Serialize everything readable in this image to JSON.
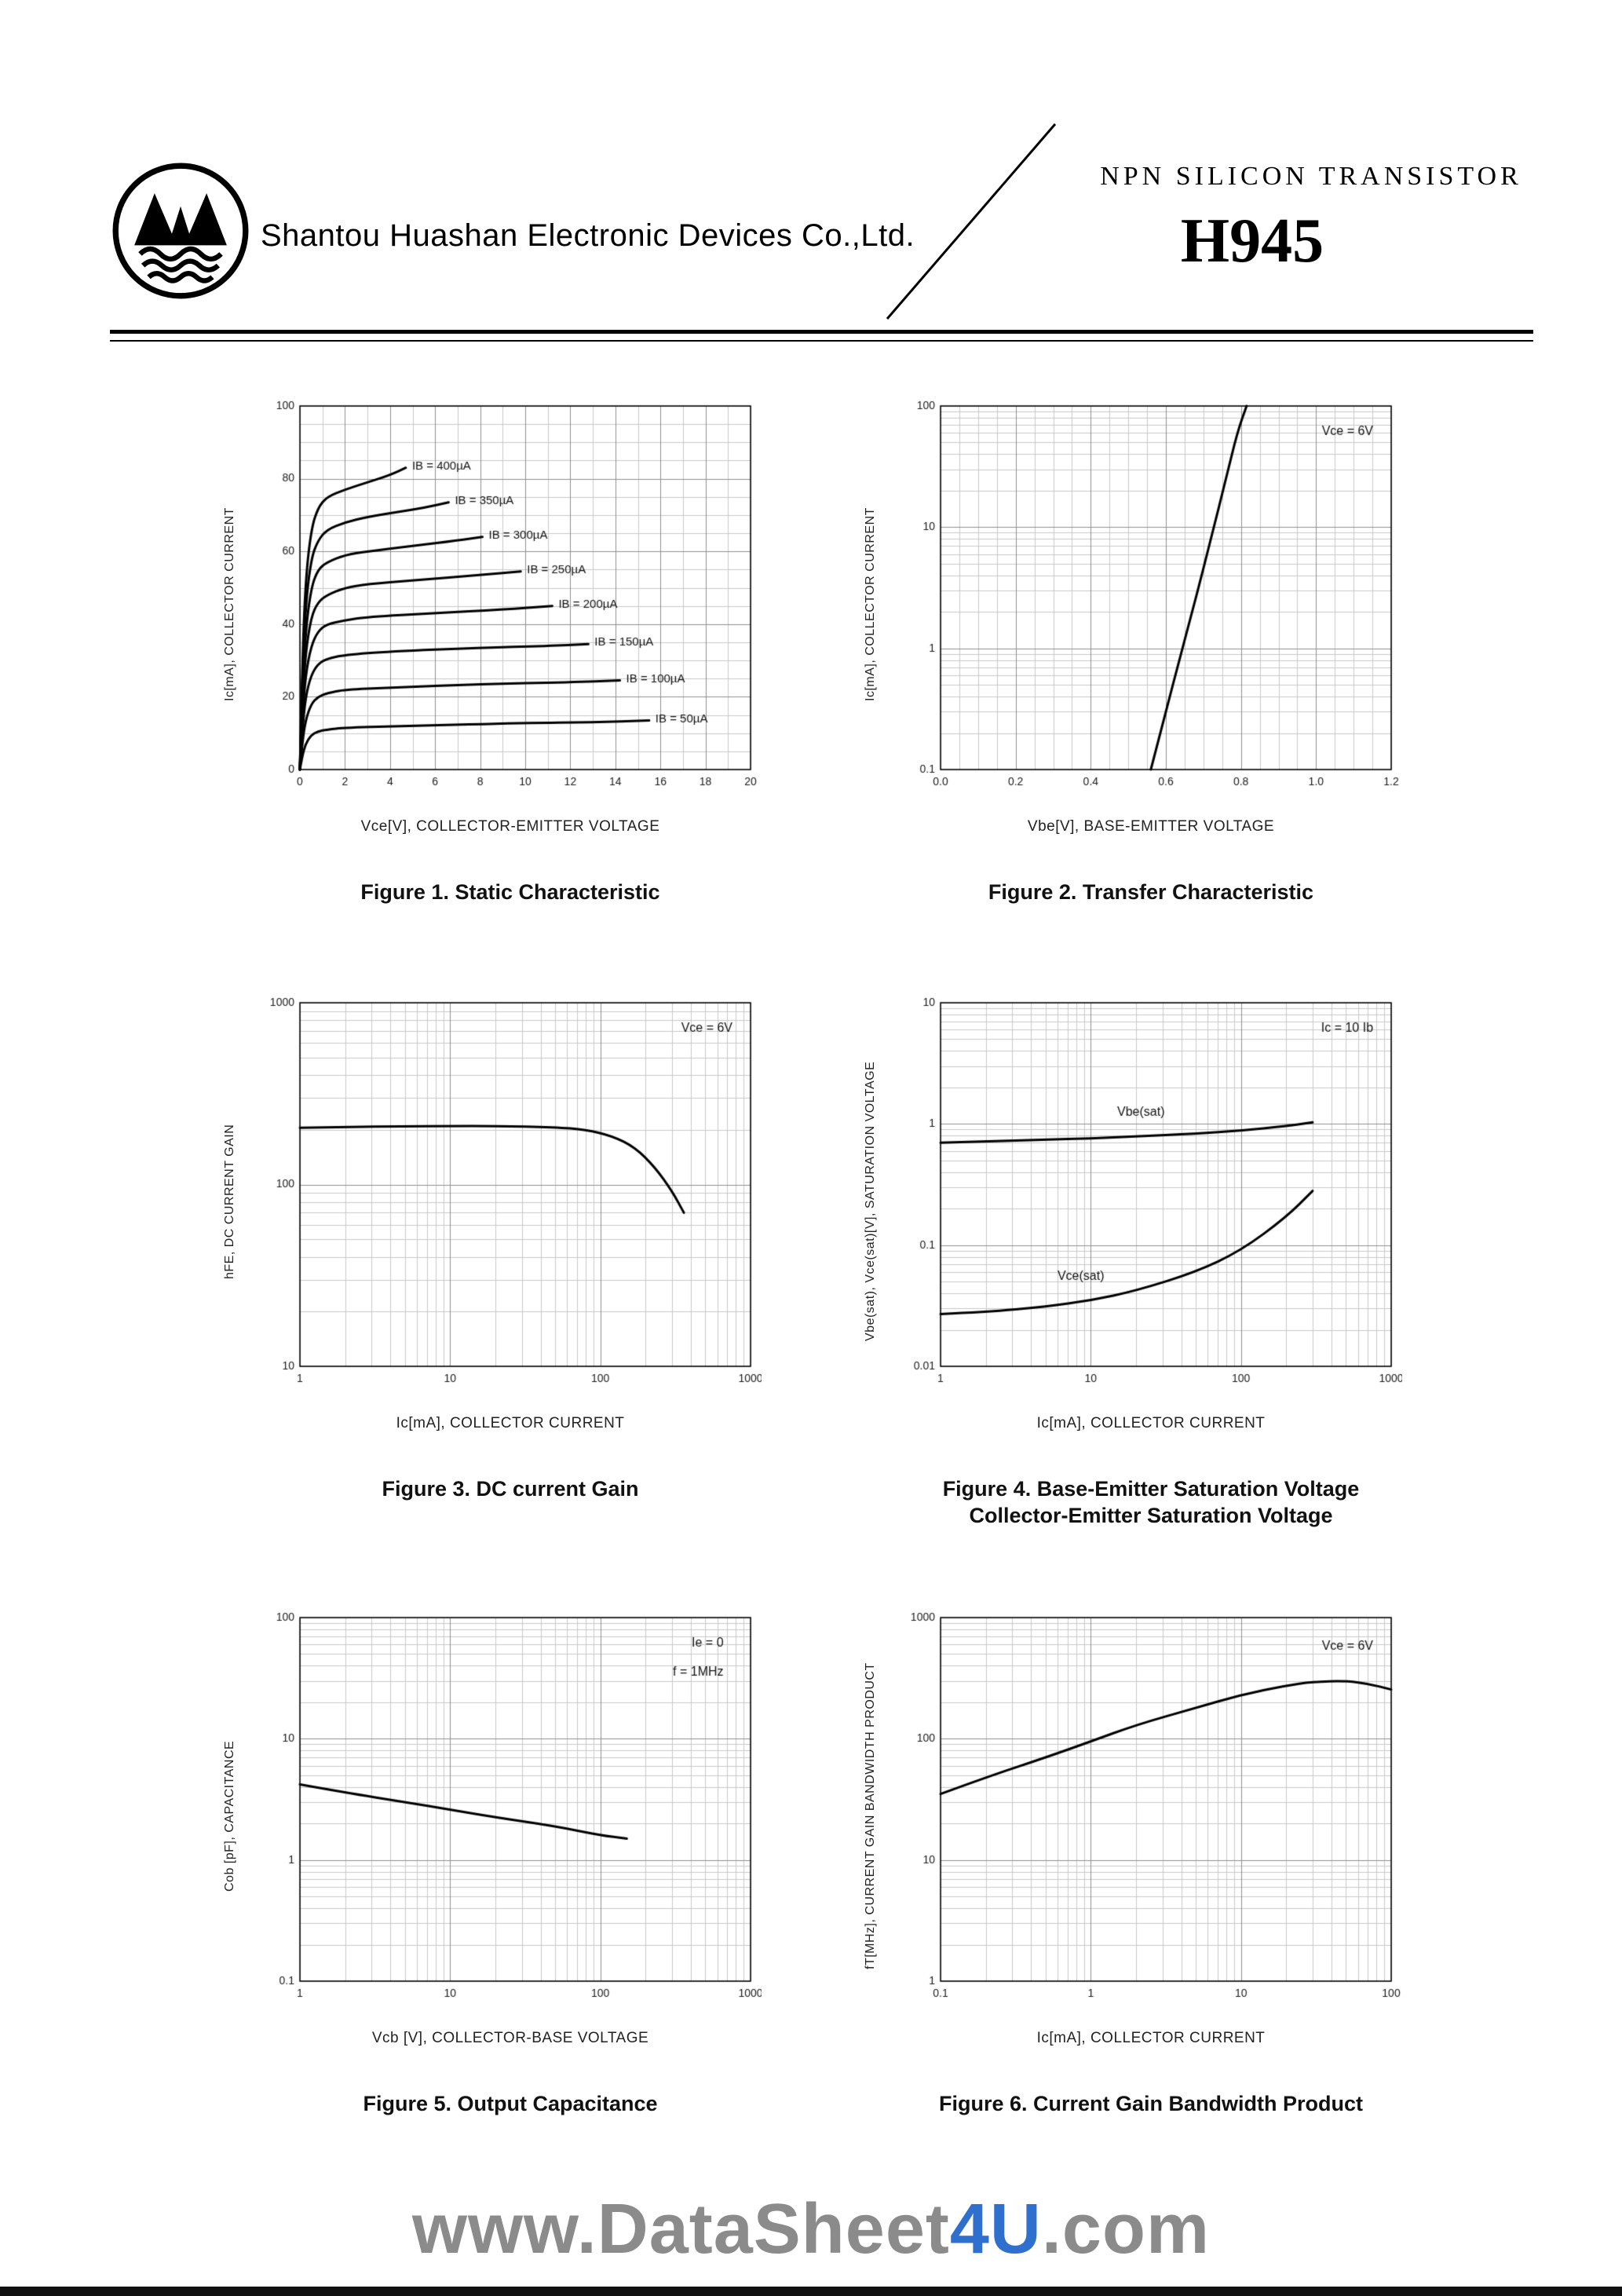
{
  "header": {
    "company": "Shantou Huashan Electronic Devices Co.,Ltd.",
    "device_type": "NPN  SILICON  TRANSISTOR",
    "part_number": "H945"
  },
  "watermark": {
    "prefix": "www.DataSheet",
    "highlight": "4U",
    "suffix": ".com"
  },
  "colors": {
    "curve": "#000000",
    "grid_minor": "#c9c9c9",
    "grid_major": "#8f8f8f",
    "watermark_gray": "#8b8b8b",
    "watermark_blue": "#2f6fce"
  },
  "chart_data": [
    {
      "type": "line",
      "caption": "Figure 1. Static Characteristic",
      "xlabel": "Vce[V], COLLECTOR-EMITTER VOLTAGE",
      "ylabel": "Ic[mA], COLLECTOR CURRENT",
      "x": {
        "scale": "linear",
        "min": 0,
        "max": 20,
        "minor_step": 1,
        "tick_values": [
          0,
          2,
          4,
          6,
          8,
          10,
          12,
          14,
          16,
          18,
          20
        ],
        "tick_labels": [
          "0",
          "2",
          "4",
          "6",
          "8",
          "10",
          "12",
          "14",
          "16",
          "18",
          "20"
        ]
      },
      "y": {
        "scale": "linear",
        "min": 0,
        "max": 100,
        "minor_step": 5,
        "tick_values": [
          0,
          20,
          40,
          60,
          80,
          100
        ],
        "tick_labels": [
          "0",
          "20",
          "40",
          "60",
          "80",
          "100"
        ]
      },
      "series": [
        {
          "name": "IB = 400µA",
          "end_label": true,
          "points": [
            [
              0,
              0
            ],
            [
              0.1,
              28
            ],
            [
              0.25,
              52
            ],
            [
              0.5,
              66
            ],
            [
              0.8,
              72
            ],
            [
              1.2,
              75
            ],
            [
              2,
              77
            ],
            [
              3,
              79
            ],
            [
              4,
              81
            ],
            [
              4.7,
              83
            ]
          ]
        },
        {
          "name": "IB = 350µA",
          "end_label": true,
          "points": [
            [
              0,
              0
            ],
            [
              0.1,
              24
            ],
            [
              0.25,
              45
            ],
            [
              0.5,
              58
            ],
            [
              0.8,
              63
            ],
            [
              1.2,
              66
            ],
            [
              2,
              68
            ],
            [
              3,
              69.5
            ],
            [
              4.5,
              71
            ],
            [
              5.5,
              72
            ],
            [
              6.6,
              73.5
            ]
          ]
        },
        {
          "name": "IB = 300µA",
          "end_label": true,
          "points": [
            [
              0,
              0
            ],
            [
              0.1,
              20
            ],
            [
              0.25,
              38
            ],
            [
              0.5,
              50
            ],
            [
              0.8,
              55
            ],
            [
              1.2,
              57
            ],
            [
              2,
              59
            ],
            [
              3,
              60
            ],
            [
              5,
              61.5
            ],
            [
              7,
              63
            ],
            [
              8.1,
              64
            ]
          ]
        },
        {
          "name": "IB = 250µA",
          "end_label": true,
          "points": [
            [
              0,
              0
            ],
            [
              0.1,
              17
            ],
            [
              0.25,
              32
            ],
            [
              0.5,
              42
            ],
            [
              0.8,
              46
            ],
            [
              1.2,
              48
            ],
            [
              2,
              50
            ],
            [
              3,
              51
            ],
            [
              5,
              52
            ],
            [
              8,
              53.5
            ],
            [
              9.8,
              54.5
            ]
          ]
        },
        {
          "name": "IB = 200µA",
          "end_label": true,
          "points": [
            [
              0,
              0
            ],
            [
              0.1,
              13
            ],
            [
              0.25,
              26
            ],
            [
              0.5,
              34
            ],
            [
              0.8,
              38
            ],
            [
              1.2,
              40
            ],
            [
              2,
              41
            ],
            [
              3,
              42
            ],
            [
              6,
              43
            ],
            [
              9,
              44
            ],
            [
              11.2,
              45
            ]
          ]
        },
        {
          "name": "IB = 150µA",
          "end_label": true,
          "points": [
            [
              0,
              0
            ],
            [
              0.1,
              10
            ],
            [
              0.25,
              20
            ],
            [
              0.5,
              26
            ],
            [
              0.8,
              29
            ],
            [
              1.2,
              30.5
            ],
            [
              2,
              31.5
            ],
            [
              4,
              32.5
            ],
            [
              8,
              33.5
            ],
            [
              11,
              34
            ],
            [
              12.8,
              34.5
            ]
          ]
        },
        {
          "name": "IB = 100µA",
          "end_label": true,
          "points": [
            [
              0,
              0
            ],
            [
              0.1,
              7
            ],
            [
              0.25,
              13.5
            ],
            [
              0.5,
              18
            ],
            [
              0.8,
              20
            ],
            [
              1.2,
              21
            ],
            [
              2,
              22
            ],
            [
              4,
              22.5
            ],
            [
              8,
              23.5
            ],
            [
              12,
              24
            ],
            [
              14.2,
              24.5
            ]
          ]
        },
        {
          "name": "IB = 50µA",
          "end_label": true,
          "points": [
            [
              0,
              0
            ],
            [
              0.1,
              3.5
            ],
            [
              0.25,
              7
            ],
            [
              0.5,
              9.5
            ],
            [
              0.8,
              10.5
            ],
            [
              1.2,
              11
            ],
            [
              2,
              11.5
            ],
            [
              5,
              12
            ],
            [
              10,
              12.8
            ],
            [
              13,
              13
            ],
            [
              15.5,
              13.5
            ]
          ]
        }
      ],
      "annotations": []
    },
    {
      "type": "line",
      "caption": "Figure 2. Transfer Characteristic",
      "xlabel": "Vbe[V], BASE-EMITTER VOLTAGE",
      "ylabel": "Ic[mA], COLLECTOR CURRENT",
      "x": {
        "scale": "linear",
        "min": 0,
        "max": 1.2,
        "minor_step": 0.05,
        "tick_values": [
          0,
          0.2,
          0.4,
          0.6,
          0.8,
          1.0,
          1.2
        ],
        "tick_labels": [
          "0.0",
          "0.2",
          "0.4",
          "0.6",
          "0.8",
          "1.0",
          "1.2"
        ]
      },
      "y": {
        "scale": "log",
        "min": 0.1,
        "max": 100,
        "tick_values": [
          0.1,
          1,
          10,
          100
        ],
        "tick_labels": [
          "0.1",
          "1",
          "10",
          "100"
        ]
      },
      "series": [
        {
          "name": "Ic",
          "points": [
            [
              0.56,
              0.1
            ],
            [
              0.6,
              0.3
            ],
            [
              0.64,
              0.9
            ],
            [
              0.68,
              2.6
            ],
            [
              0.72,
              8
            ],
            [
              0.76,
              25
            ],
            [
              0.79,
              60
            ],
            [
              0.815,
              100
            ]
          ]
        }
      ],
      "annotations": [
        {
          "text": "Vce = 6V",
          "rx": 0.96,
          "ry": 0.07,
          "align": "right"
        }
      ]
    },
    {
      "type": "line",
      "caption": "Figure 3. DC current Gain",
      "xlabel": "Ic[mA], COLLECTOR CURRENT",
      "ylabel": "hFE, DC CURRENT GAIN",
      "x": {
        "scale": "log",
        "min": 1,
        "max": 1000,
        "tick_values": [
          1,
          10,
          100,
          1000
        ],
        "tick_labels": [
          "1",
          "10",
          "100",
          "1000"
        ]
      },
      "y": {
        "scale": "log",
        "min": 10,
        "max": 1000,
        "tick_values": [
          10,
          100,
          1000
        ],
        "tick_labels": [
          "10",
          "100",
          "1000"
        ]
      },
      "series": [
        {
          "name": "hFE",
          "points": [
            [
              1,
              205
            ],
            [
              2,
              207
            ],
            [
              5,
              209
            ],
            [
              10,
              210
            ],
            [
              20,
              210
            ],
            [
              50,
              207
            ],
            [
              80,
              200
            ],
            [
              120,
              185
            ],
            [
              170,
              160
            ],
            [
              230,
              125
            ],
            [
              300,
              92
            ],
            [
              360,
              70
            ]
          ]
        }
      ],
      "annotations": [
        {
          "text": "Vce = 6V",
          "rx": 0.96,
          "ry": 0.07,
          "align": "right"
        }
      ]
    },
    {
      "type": "line",
      "caption": "Figure 4. Base-Emitter Saturation Voltage",
      "caption2": "Collector-Emitter Saturation Voltage",
      "xlabel": "Ic[mA], COLLECTOR CURRENT",
      "ylabel": "Vbe(sat), Vce(sat)[V], SATURATION VOLTAGE",
      "x": {
        "scale": "log",
        "min": 1,
        "max": 1000,
        "tick_values": [
          1,
          10,
          100,
          1000
        ],
        "tick_labels": [
          "1",
          "10",
          "100",
          "1000"
        ]
      },
      "y": {
        "scale": "log",
        "min": 0.01,
        "max": 10,
        "tick_values": [
          0.01,
          0.1,
          1,
          10
        ],
        "tick_labels": [
          "0.01",
          "0.1",
          "1",
          "10"
        ]
      },
      "series": [
        {
          "name": "Vbe(sat)",
          "points": [
            [
              1,
              0.7
            ],
            [
              2,
              0.72
            ],
            [
              5,
              0.74
            ],
            [
              10,
              0.76
            ],
            [
              20,
              0.79
            ],
            [
              50,
              0.83
            ],
            [
              100,
              0.88
            ],
            [
              200,
              0.96
            ],
            [
              300,
              1.03
            ]
          ]
        },
        {
          "name": "Vce(sat)",
          "points": [
            [
              1,
              0.027
            ],
            [
              2,
              0.028
            ],
            [
              5,
              0.031
            ],
            [
              10,
              0.035
            ],
            [
              20,
              0.042
            ],
            [
              50,
              0.06
            ],
            [
              100,
              0.09
            ],
            [
              200,
              0.17
            ],
            [
              300,
              0.28
            ]
          ]
        }
      ],
      "annotations": [
        {
          "text": "Ic = 10 Ib",
          "rx": 0.96,
          "ry": 0.07,
          "align": "right"
        },
        {
          "text": "Vbe(sat)",
          "x": 15,
          "y": 1.25,
          "align": "left"
        },
        {
          "text": "Vce(sat)",
          "x": 6,
          "y": 0.055,
          "align": "left"
        }
      ]
    },
    {
      "type": "line",
      "caption": "Figure 5. Output Capacitance",
      "xlabel": "Vcb [V], COLLECTOR-BASE VOLTAGE",
      "ylabel": "Cob [pF], CAPACITANCE",
      "x": {
        "scale": "log",
        "min": 1,
        "max": 1000,
        "tick_values": [
          1,
          10,
          100,
          1000
        ],
        "tick_labels": [
          "1",
          "10",
          "100",
          "1000"
        ]
      },
      "y": {
        "scale": "log",
        "min": 0.1,
        "max": 100,
        "tick_values": [
          0.1,
          1,
          10,
          100
        ],
        "tick_labels": [
          "0.1",
          "1",
          "10",
          "100"
        ]
      },
      "series": [
        {
          "name": "Cob",
          "points": [
            [
              1,
              4.2
            ],
            [
              2,
              3.6
            ],
            [
              5,
              3.0
            ],
            [
              10,
              2.6
            ],
            [
              20,
              2.25
            ],
            [
              50,
              1.9
            ],
            [
              100,
              1.6
            ],
            [
              150,
              1.5
            ]
          ]
        }
      ],
      "annotations": [
        {
          "text": "Ie = 0",
          "rx": 0.94,
          "ry": 0.07,
          "align": "right"
        },
        {
          "text": "f = 1MHz",
          "rx": 0.94,
          "ry": 0.15,
          "align": "right"
        }
      ]
    },
    {
      "type": "line",
      "caption": "Figure 6. Current Gain Bandwidth Product",
      "xlabel": "Ic[mA], COLLECTOR CURRENT",
      "ylabel": "fT[MHz], CURRENT GAIN BANDWIDTH PRODUCT",
      "x": {
        "scale": "log",
        "min": 0.1,
        "max": 100,
        "tick_values": [
          0.1,
          1,
          10,
          100
        ],
        "tick_labels": [
          "0.1",
          "1",
          "10",
          "100"
        ]
      },
      "y": {
        "scale": "log",
        "min": 1,
        "max": 1000,
        "tick_values": [
          1,
          10,
          100,
          1000
        ],
        "tick_labels": [
          "1",
          "10",
          "100",
          "1000"
        ]
      },
      "series": [
        {
          "name": "fT",
          "points": [
            [
              0.1,
              35
            ],
            [
              0.2,
              48
            ],
            [
              0.5,
              70
            ],
            [
              1,
              95
            ],
            [
              2,
              130
            ],
            [
              5,
              180
            ],
            [
              10,
              230
            ],
            [
              20,
              275
            ],
            [
              30,
              295
            ],
            [
              50,
              300
            ],
            [
              70,
              285
            ],
            [
              100,
              255
            ]
          ]
        }
      ],
      "annotations": [
        {
          "text": "Vce = 6V",
          "rx": 0.96,
          "ry": 0.08,
          "align": "right"
        }
      ]
    }
  ]
}
